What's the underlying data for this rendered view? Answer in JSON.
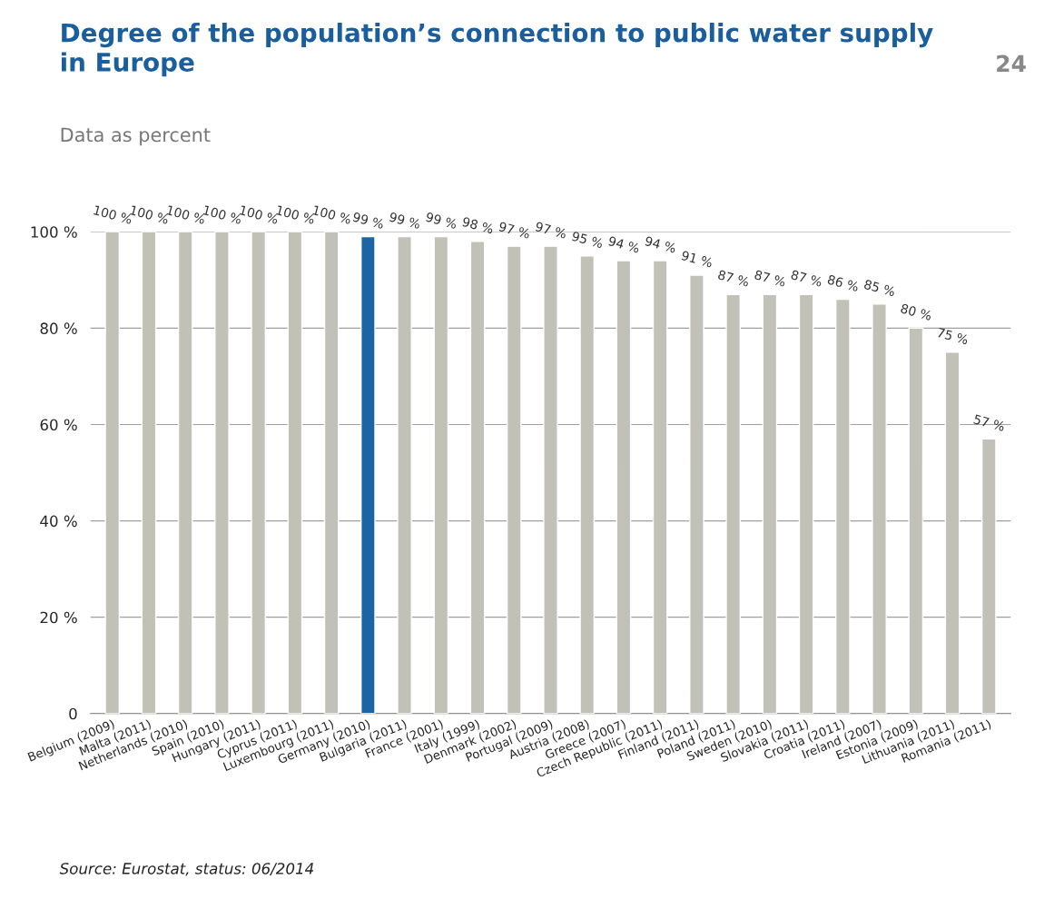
{
  "chart_data": {
    "type": "bar",
    "title": "Degree of the population’s connection to public water supply\nin Europe",
    "subtitle": "Data as percent",
    "categories": [
      "Belgium (2009)",
      "Malta (2011)",
      "Netherlands (2010)",
      "Spain (2010)",
      "Hungary (2011)",
      "Cyprus (2011)",
      "Luxembourg (2011)",
      "Germany (2010)",
      "Bulgaria (2011)",
      "France (2001)",
      "Italy (1999)",
      "Denmark (2002)",
      "Portugal (2009)",
      "Austria (2008)",
      "Greece (2007)",
      "Czech Republic (2011)",
      "Finland (2011)",
      "Poland (2011)",
      "Sweden (2010)",
      "Slovakia (2011)",
      "Croatia (2011)",
      "Ireland (2007)",
      "Estonia (2009)",
      "Lithuania (2011)",
      "Romania (2011)"
    ],
    "values": [
      100,
      100,
      100,
      100,
      100,
      100,
      100,
      99,
      99,
      99,
      98,
      97,
      97,
      95,
      94,
      94,
      91,
      87,
      87,
      87,
      86,
      85,
      80,
      75,
      57
    ],
    "value_labels": [
      "100 %",
      "100 %",
      "100 %",
      "100 %",
      "100 %",
      "100 %",
      "100 %",
      "99 %",
      "99 %",
      "99 %",
      "98 %",
      "97 %",
      "97 %",
      "95 %",
      "94 %",
      "94 %",
      "91 %",
      "87 %",
      "87 %",
      "87 %",
      "86 %",
      "85 %",
      "80 %",
      "75 %",
      "57 %"
    ],
    "colors": [
      "#c2c1b7",
      "#c2c1b7",
      "#c2c1b7",
      "#c2c1b7",
      "#c2c1b7",
      "#c2c1b7",
      "#c2c1b7",
      "#1b65a3",
      "#c2c1b7",
      "#c2c1b7",
      "#c2c1b7",
      "#c2c1b7",
      "#c2c1b7",
      "#c2c1b7",
      "#c2c1b7",
      "#c2c1b7",
      "#c2c1b7",
      "#c2c1b7",
      "#c2c1b7",
      "#c2c1b7",
      "#c2c1b7",
      "#c2c1b7",
      "#c2c1b7",
      "#c2c1b7",
      "#c2c1b7"
    ],
    "ylim": [
      0,
      100
    ],
    "yticks": [
      0,
      {
        "value": 20,
        "label": "20 %"
      },
      {
        "value": 40,
        "label": "40 %"
      },
      {
        "value": 60,
        "label": "60 %"
      },
      {
        "value": 80,
        "label": "80 %"
      },
      {
        "value": 100,
        "label": "100 %"
      }
    ],
    "grid": "y",
    "annotations": [
      "24",
      "Source: Eurostat, status: 06/2014"
    ]
  }
}
